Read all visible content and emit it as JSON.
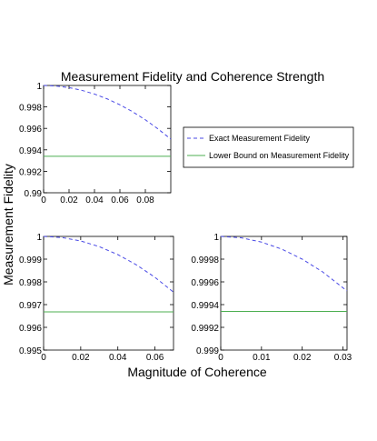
{
  "figure": {
    "title": "Measurement Fidelity and Coherence Strength",
    "ylabel": "Measurement Fidelity",
    "xlabel": "Magnitude of Coherence"
  },
  "colors": {
    "exact": "#4a4ae6",
    "bound": "#4caf50"
  },
  "legend": {
    "placement": "right-of-top-plot",
    "entries": [
      {
        "label": "Exact Measurement Fidelity",
        "style": "dashed",
        "color": "#4a4ae6"
      },
      {
        "label": "Lower Bound on Measurement Fidelity",
        "style": "solid",
        "color": "#4caf50"
      }
    ]
  },
  "chart_data": [
    {
      "type": "line",
      "xlim": [
        0,
        0.1
      ],
      "ylim": [
        0.99,
        1
      ],
      "xticks": [
        "0",
        "0.02",
        "0.04",
        "0.06",
        "0.08"
      ],
      "xtickvals": [
        0,
        0.02,
        0.04,
        0.06,
        0.08
      ],
      "yticks": [
        "0.99",
        "0.992",
        "0.994",
        "0.996",
        "0.998",
        "1"
      ],
      "ytickvals": [
        0.99,
        0.992,
        0.994,
        0.996,
        0.998,
        1
      ],
      "series": [
        {
          "name": "Exact Measurement Fidelity",
          "style": "dashed",
          "x": [
            0,
            0.01,
            0.02,
            0.03,
            0.04,
            0.05,
            0.06,
            0.07,
            0.08,
            0.09,
            0.1
          ],
          "y": [
            1.0,
            0.99995,
            0.9998,
            0.99955,
            0.9992,
            0.99875,
            0.9982,
            0.99755,
            0.9968,
            0.99595,
            0.995
          ]
        },
        {
          "name": "Lower Bound on Measurement Fidelity",
          "style": "solid",
          "x": [
            0,
            0.1
          ],
          "y": [
            0.9934,
            0.9934
          ]
        }
      ]
    },
    {
      "type": "line",
      "xlim": [
        0,
        0.07
      ],
      "ylim": [
        0.995,
        1
      ],
      "xticks": [
        "0",
        "0.02",
        "0.04",
        "0.06"
      ],
      "xtickvals": [
        0,
        0.02,
        0.04,
        0.06
      ],
      "yticks": [
        "0.995",
        "0.996",
        "0.997",
        "0.998",
        "0.999",
        "1"
      ],
      "ytickvals": [
        0.995,
        0.996,
        0.997,
        0.998,
        0.999,
        1
      ],
      "series": [
        {
          "name": "Exact Measurement Fidelity",
          "style": "dashed",
          "x": [
            0,
            0.01,
            0.02,
            0.03,
            0.04,
            0.05,
            0.06,
            0.07
          ],
          "y": [
            1.0,
            0.99995,
            0.9998,
            0.99955,
            0.9992,
            0.99875,
            0.9982,
            0.99755
          ]
        },
        {
          "name": "Lower Bound on Measurement Fidelity",
          "style": "solid",
          "x": [
            0,
            0.07
          ],
          "y": [
            0.99668,
            0.99668
          ]
        }
      ]
    },
    {
      "type": "line",
      "xlim": [
        0,
        0.031
      ],
      "ylim": [
        0.999,
        1
      ],
      "xticks": [
        "0",
        "0.01",
        "0.02",
        "0.03"
      ],
      "xtickvals": [
        0,
        0.01,
        0.02,
        0.03
      ],
      "yticks": [
        "0.999",
        "0.9992",
        "0.9994",
        "0.9996",
        "0.9998",
        "1"
      ],
      "ytickvals": [
        0.999,
        0.9992,
        0.9994,
        0.9996,
        0.9998,
        1
      ],
      "series": [
        {
          "name": "Exact Measurement Fidelity",
          "style": "dashed",
          "x": [
            0,
            0.005,
            0.01,
            0.015,
            0.02,
            0.025,
            0.031
          ],
          "y": [
            1.0,
            0.999988,
            0.99995,
            0.999888,
            0.9998,
            0.999688,
            0.99952
          ]
        },
        {
          "name": "Lower Bound on Measurement Fidelity",
          "style": "solid",
          "x": [
            0,
            0.031
          ],
          "y": [
            0.99934,
            0.99934
          ]
        }
      ]
    }
  ]
}
